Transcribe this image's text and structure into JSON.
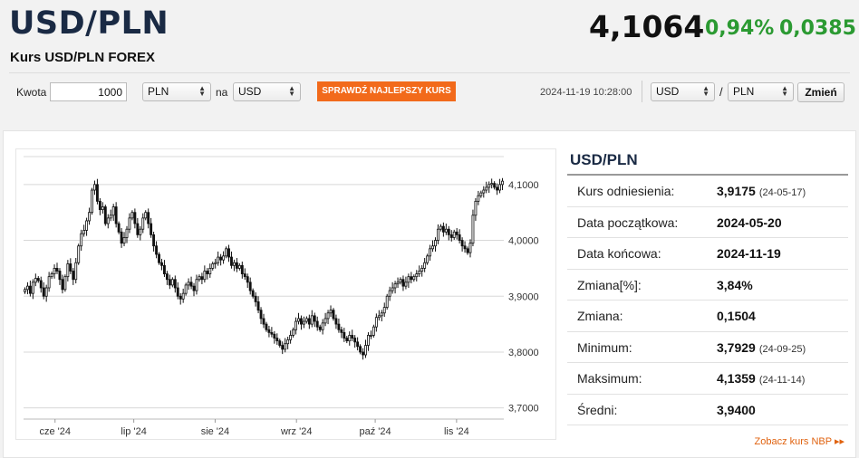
{
  "header": {
    "pair": "USD/PLN",
    "subtitle": "Kurs USD/PLN FOREX",
    "price": "4,1064",
    "change_pct": "0,94%",
    "change_abs": "0,0385"
  },
  "calculator": {
    "amount_label": "Kwota",
    "amount_value": "1000",
    "from_currency": "PLN",
    "to_label": "na",
    "to_currency": "USD",
    "best_rate_button": "SPRAWDŹ NAJLEPSZY KURS",
    "timestamp": "2024-11-19 10:28:00",
    "base_currency": "USD",
    "slash": "/",
    "quote_currency": "PLN",
    "change_button": "Zmień"
  },
  "stats": {
    "title": "USD/PLN",
    "rows": [
      {
        "label": "Kurs odniesienia:",
        "value": "3,9175",
        "date": "(24-05-17)"
      },
      {
        "label": "Data początkowa:",
        "value": "2024-05-20",
        "date": ""
      },
      {
        "label": "Data końcowa:",
        "value": "2024-11-19",
        "date": ""
      },
      {
        "label": "Zmiana[%]:",
        "value": "3,84%",
        "date": ""
      },
      {
        "label": "Zmiana:",
        "value": "0,1504",
        "date": ""
      },
      {
        "label": "Minimum:",
        "value": "3,7929",
        "date": "(24-09-25)"
      },
      {
        "label": "Maksimum:",
        "value": "4,1359",
        "date": "(24-11-14)"
      },
      {
        "label": "Średni:",
        "value": "3,9400",
        "date": ""
      }
    ],
    "nbp_link": "Zobacz kurs NBP ▸▸"
  },
  "chart_data": {
    "type": "candlestick",
    "x_start": "2024-05-20",
    "x_end": "2024-11-19",
    "ylim": [
      3.68,
      4.15
    ],
    "y_ticks": [
      "3,7000",
      "3,8000",
      "3,9000",
      "4,0000",
      "4,1000"
    ],
    "y_tick_values": [
      3.7,
      3.8,
      3.9,
      4.0,
      4.1
    ],
    "x_ticks": [
      "cze '24",
      "lip '24",
      "sie '24",
      "wrz '24",
      "paź '24",
      "lis '24"
    ],
    "x_tick_dates": [
      "2024-06-01",
      "2024-07-01",
      "2024-08-01",
      "2024-09-01",
      "2024-10-01",
      "2024-11-01"
    ],
    "grid": true,
    "close": [
      3.912,
      3.918,
      3.905,
      3.925,
      3.932,
      3.928,
      3.915,
      3.9,
      3.915,
      3.935,
      3.94,
      3.95,
      3.945,
      3.93,
      3.912,
      3.935,
      3.958,
      3.945,
      3.93,
      3.96,
      3.99,
      4.012,
      4.018,
      4.035,
      4.05,
      4.09,
      4.1,
      4.07,
      4.055,
      4.06,
      4.03,
      4.04,
      4.045,
      4.06,
      4.03,
      4.015,
      3.995,
      4.005,
      4.02,
      4.04,
      4.05,
      4.03,
      4.01,
      4.02,
      4.04,
      4.05,
      4.03,
      4.01,
      3.99,
      3.975,
      3.96,
      3.955,
      3.94,
      3.93,
      3.92,
      3.93,
      3.915,
      3.9,
      3.895,
      3.905,
      3.92,
      3.925,
      3.918,
      3.91,
      3.93,
      3.935,
      3.93,
      3.945,
      3.94,
      3.95,
      3.958,
      3.96,
      3.97,
      3.965,
      3.972,
      3.985,
      3.97,
      3.955,
      3.96,
      3.95,
      3.955,
      3.94,
      3.935,
      3.925,
      3.91,
      3.9,
      3.89,
      3.875,
      3.86,
      3.85,
      3.84,
      3.835,
      3.832,
      3.825,
      3.82,
      3.812,
      3.805,
      3.815,
      3.822,
      3.83,
      3.84,
      3.855,
      3.86,
      3.85,
      3.855,
      3.86,
      3.85,
      3.865,
      3.855,
      3.845,
      3.84,
      3.852,
      3.86,
      3.87,
      3.875,
      3.86,
      3.85,
      3.84,
      3.835,
      3.825,
      3.82,
      3.83,
      3.825,
      3.818,
      3.81,
      3.8,
      3.795,
      3.812,
      3.83,
      3.83,
      3.845,
      3.862,
      3.865,
      3.87,
      3.88,
      3.9,
      3.91,
      3.915,
      3.922,
      3.925,
      3.93,
      3.918,
      3.925,
      3.935,
      3.93,
      3.935,
      3.94,
      3.945,
      3.95,
      3.96,
      3.972,
      3.985,
      3.99,
      4.0,
      4.02,
      4.025,
      4.015,
      4.02,
      4.01,
      4.005,
      4.015,
      4.01,
      4.0,
      3.99,
      3.985,
      3.978,
      3.995,
      4.045,
      4.07,
      4.08,
      4.085,
      4.09,
      4.095,
      4.1,
      4.102,
      4.095,
      4.09,
      4.1,
      4.106
    ]
  }
}
